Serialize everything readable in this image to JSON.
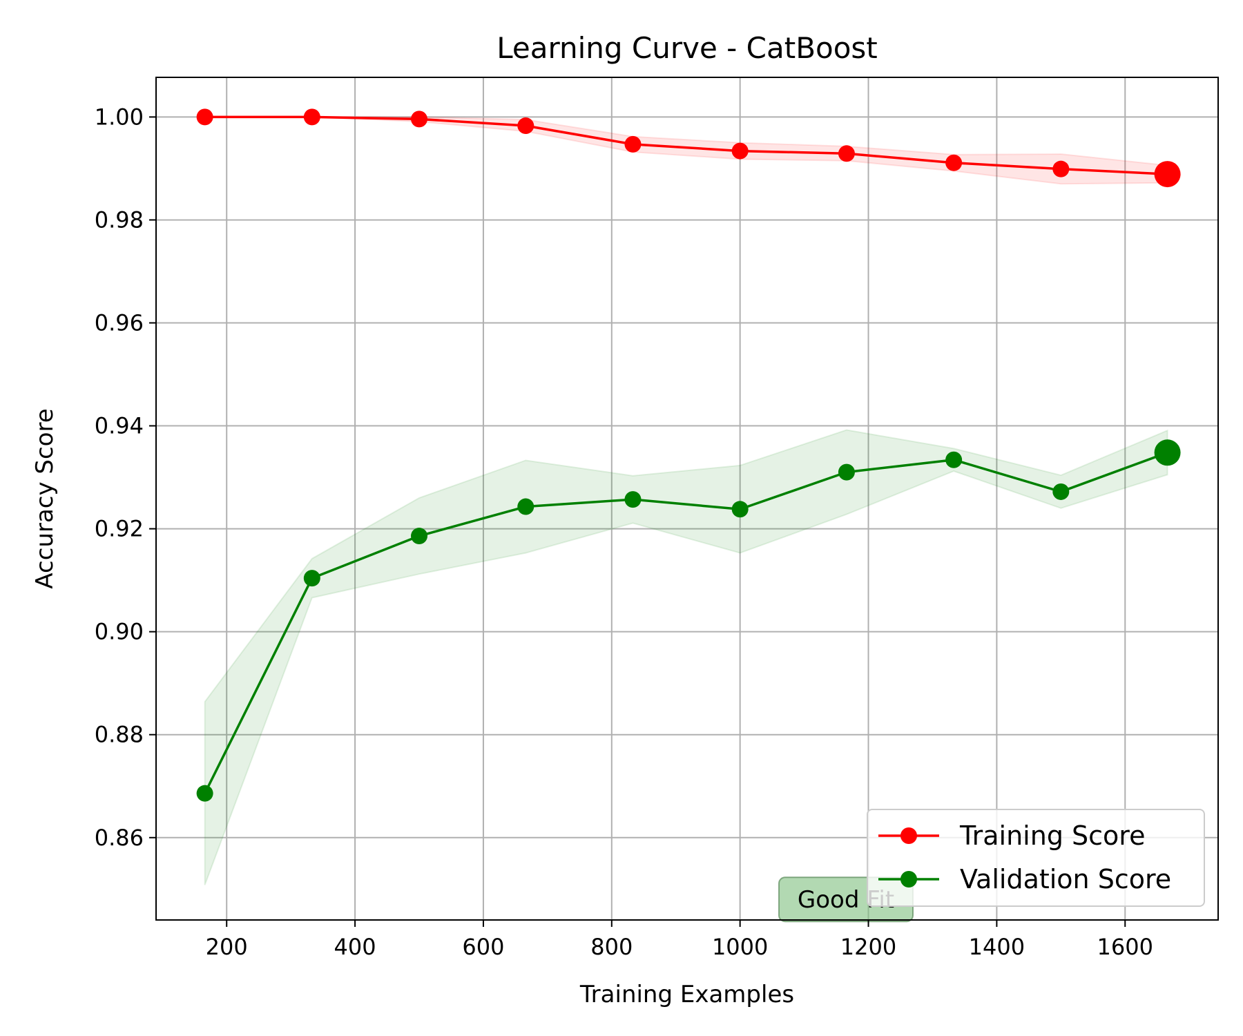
{
  "chart_data": {
    "type": "line",
    "title": "Learning Curve - CatBoost",
    "xlabel": "Training Examples",
    "ylabel": "Accuracy Score",
    "xlim": [
      90,
      1745
    ],
    "ylim": [
      0.844,
      1.0077
    ],
    "x_ticks": [
      200,
      400,
      600,
      800,
      1000,
      1200,
      1400,
      1600
    ],
    "y_ticks": [
      0.86,
      0.88,
      0.9,
      0.92,
      0.94,
      0.96,
      0.98,
      1.0
    ],
    "x_tick_labels": [
      "200",
      "400",
      "600",
      "800",
      "1000",
      "1200",
      "1400",
      "1600"
    ],
    "y_tick_labels": [
      "0.86",
      "0.88",
      "0.90",
      "0.92",
      "0.94",
      "0.96",
      "0.98",
      "1.00"
    ],
    "grid": true,
    "legend_position": "lower-right",
    "x": [
      166,
      333,
      500,
      666,
      833,
      1000,
      1166,
      1333,
      1500,
      1666
    ],
    "series": [
      {
        "name": "Training Score",
        "color": "#ff0000",
        "band_color": "#ff0000",
        "values": [
          1.0,
          1.0,
          0.9996,
          0.9983,
          0.9947,
          0.9934,
          0.9929,
          0.9911,
          0.9899,
          0.9889
        ],
        "band_lower": [
          1.0,
          1.0,
          0.9991,
          0.9972,
          0.9932,
          0.9918,
          0.9915,
          0.9895,
          0.987,
          0.9872
        ],
        "band_upper": [
          1.0,
          1.0,
          1.0,
          0.9995,
          0.9962,
          0.995,
          0.9943,
          0.9927,
          0.9928,
          0.9906
        ]
      },
      {
        "name": "Validation Score",
        "color": "#008000",
        "band_color": "#008000",
        "values": [
          0.8686,
          0.9104,
          0.9186,
          0.9243,
          0.9257,
          0.9238,
          0.931,
          0.9334,
          0.9272,
          0.9348
        ],
        "band_lower": [
          0.8508,
          0.9066,
          0.9112,
          0.9153,
          0.9211,
          0.9153,
          0.9228,
          0.9312,
          0.924,
          0.9305
        ],
        "band_upper": [
          0.8864,
          0.9142,
          0.926,
          0.9333,
          0.9303,
          0.9323,
          0.9392,
          0.9356,
          0.9304,
          0.9391
        ]
      }
    ],
    "annotation": {
      "text": "Good Fit",
      "x": 1165,
      "y": 0.848,
      "box_color": "#7fbf7f"
    }
  }
}
